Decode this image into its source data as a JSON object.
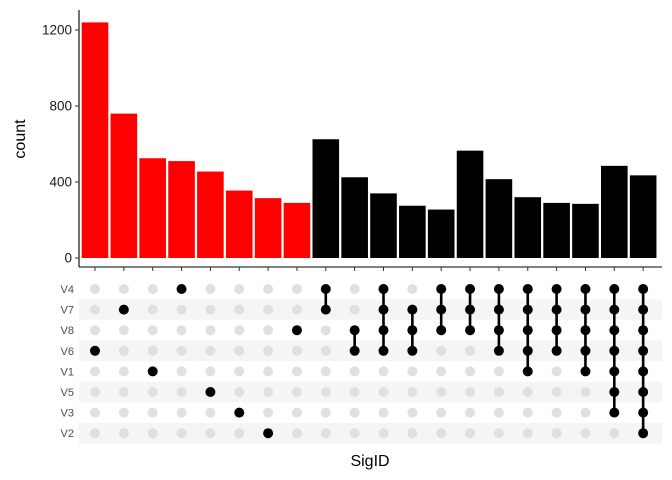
{
  "chart_data": {
    "type": "bar",
    "subtype": "upset",
    "title": "",
    "xlabel": "SigID",
    "ylabel": "count",
    "ylim": [
      0,
      1300
    ],
    "yticks": [
      0,
      400,
      800,
      1200
    ],
    "grid": false,
    "legend": "none",
    "sets": [
      "V4",
      "V7",
      "V8",
      "V6",
      "V1",
      "V5",
      "V3",
      "V2"
    ],
    "intersections": [
      {
        "sets": [
          "V6"
        ],
        "value": 1240,
        "color": "#ff0000"
      },
      {
        "sets": [
          "V7"
        ],
        "value": 760,
        "color": "#ff0000"
      },
      {
        "sets": [
          "V1"
        ],
        "value": 525,
        "color": "#ff0000"
      },
      {
        "sets": [
          "V4"
        ],
        "value": 510,
        "color": "#ff0000"
      },
      {
        "sets": [
          "V5"
        ],
        "value": 455,
        "color": "#ff0000"
      },
      {
        "sets": [
          "V3"
        ],
        "value": 355,
        "color": "#ff0000"
      },
      {
        "sets": [
          "V2"
        ],
        "value": 315,
        "color": "#ff0000"
      },
      {
        "sets": [
          "V8"
        ],
        "value": 290,
        "color": "#ff0000"
      },
      {
        "sets": [
          "V4",
          "V7"
        ],
        "value": 625,
        "color": "#000000"
      },
      {
        "sets": [
          "V8",
          "V6"
        ],
        "value": 425,
        "color": "#000000"
      },
      {
        "sets": [
          "V4",
          "V7",
          "V8",
          "V6"
        ],
        "value": 340,
        "color": "#000000"
      },
      {
        "sets": [
          "V7",
          "V8",
          "V6"
        ],
        "value": 275,
        "color": "#000000"
      },
      {
        "sets": [
          "V4",
          "V7",
          "V8"
        ],
        "value": 255,
        "color": "#000000"
      },
      {
        "sets": [
          "V4",
          "V7",
          "V8"
        ],
        "value": 565,
        "color": "#000000"
      },
      {
        "sets": [
          "V4",
          "V7",
          "V8",
          "V6"
        ],
        "value": 415,
        "color": "#000000"
      },
      {
        "sets": [
          "V4",
          "V7",
          "V8",
          "V6",
          "V1"
        ],
        "value": 320,
        "color": "#000000"
      },
      {
        "sets": [
          "V4",
          "V7",
          "V8",
          "V6"
        ],
        "value": 290,
        "color": "#000000"
      },
      {
        "sets": [
          "V4",
          "V7",
          "V8",
          "V6",
          "V1"
        ],
        "value": 285,
        "color": "#000000"
      },
      {
        "sets": [
          "V4",
          "V7",
          "V8",
          "V6",
          "V1",
          "V5",
          "V3"
        ],
        "value": 485,
        "color": "#000000"
      },
      {
        "sets": [
          "V4",
          "V7",
          "V8",
          "V6",
          "V1",
          "V5",
          "V3",
          "V2"
        ],
        "value": 435,
        "color": "#000000"
      }
    ],
    "colors": {
      "single": "#ff0000",
      "multi": "#000000",
      "dot_active": "#000000",
      "dot_inactive": "#e0e0e0",
      "stripe": "#f5f5f5"
    }
  }
}
